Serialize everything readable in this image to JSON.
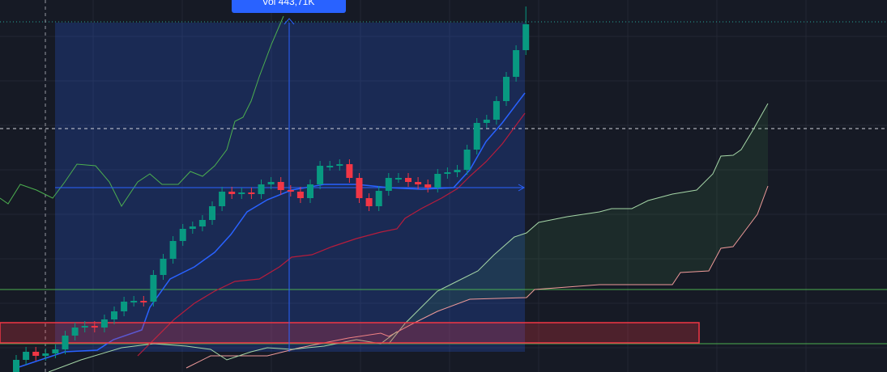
{
  "tooltip": {
    "label": "Vol 443,71K"
  }
}
